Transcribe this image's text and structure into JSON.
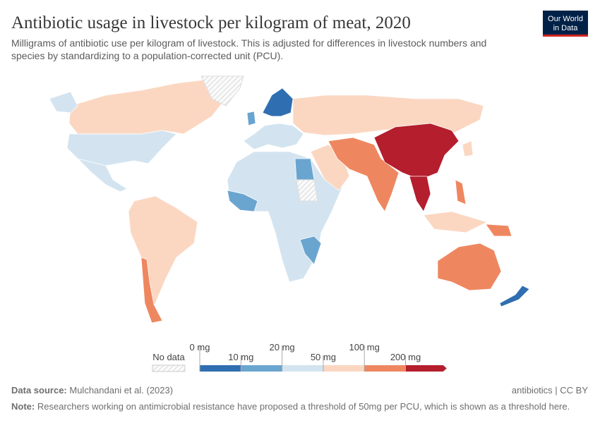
{
  "header": {
    "title": "Antibiotic usage in livestock per kilogram of meat, 2020",
    "subtitle_lines": [
      "Milligrams of antibiotic use per kilogram of livestock. This is adjusted for differences in livestock numbers and",
      "species by standardizing to a population-corrected unit (PCU)."
    ],
    "logo_lines": [
      "Our World",
      "in Data"
    ]
  },
  "legend": {
    "no_data_label": "No data",
    "labels": [
      "0 mg",
      "10 mg",
      "20 mg",
      "50 mg",
      "100 mg",
      "200 mg"
    ],
    "colors": [
      "#2f6eb0",
      "#6aa5d0",
      "#d3e4f0",
      "#fbd7c2",
      "#ee8760",
      "#b41e2d"
    ]
  },
  "footer": {
    "source_label": "Data source:",
    "source": "Mulchandani et al. (2023)",
    "license": "antibiotics | CC BY",
    "note_label": "Note:",
    "note": "Researchers working on antimicrobial resistance have proposed a threshold of 50mg per PCU, which is shown as a threshold here."
  }
}
